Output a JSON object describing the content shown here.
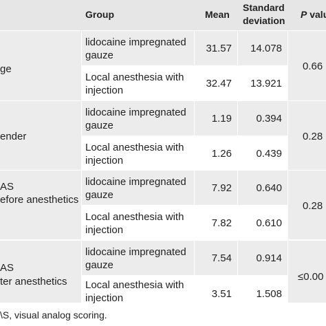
{
  "header": {
    "group": "Group",
    "mean": "Mean",
    "sd_line1": "Standard",
    "sd_line2": "deviation",
    "p_italic": "P",
    "p_rest": " valu"
  },
  "rows": [
    {
      "variable_lines": [
        "ge"
      ],
      "p_value": "0.66",
      "groups": [
        {
          "label_lines": [
            "lidocaine impregnated",
            "gauze"
          ],
          "mean": "31.57",
          "sd": "14.078"
        },
        {
          "label_lines": [
            "Local anesthesia with",
            "injection"
          ],
          "mean": "32.47",
          "sd": "13.921"
        }
      ]
    },
    {
      "variable_lines": [
        "ender"
      ],
      "p_value": "0.28",
      "groups": [
        {
          "label_lines": [
            "lidocaine impregnated",
            "gauze"
          ],
          "mean": "1.19",
          "sd": "0.394"
        },
        {
          "label_lines": [
            "Local anesthesia with",
            "injection"
          ],
          "mean": "1.26",
          "sd": "0.439"
        }
      ]
    },
    {
      "variable_lines": [
        "AS",
        "efore anesthetics"
      ],
      "p_value": "0.28",
      "groups": [
        {
          "label_lines": [
            "lidocaine impregnated",
            "gauze"
          ],
          "mean": "7.92",
          "sd": "0.640"
        },
        {
          "label_lines": [
            "Local anesthesia with",
            "injection"
          ],
          "mean": "7.82",
          "sd": "0.610"
        }
      ]
    },
    {
      "variable_lines": [
        "AS",
        "ter anesthetics"
      ],
      "p_value": "≤0.00",
      "groups": [
        {
          "label_lines": [
            "lidocaine impregnated",
            "gauze"
          ],
          "mean": "7.54",
          "sd": "0.914"
        },
        {
          "label_lines": [
            "Local anesthesia with",
            "injection"
          ],
          "mean": "3.51",
          "sd": "1.508"
        }
      ]
    }
  ],
  "footnote": "\\S, visual analog scoring."
}
